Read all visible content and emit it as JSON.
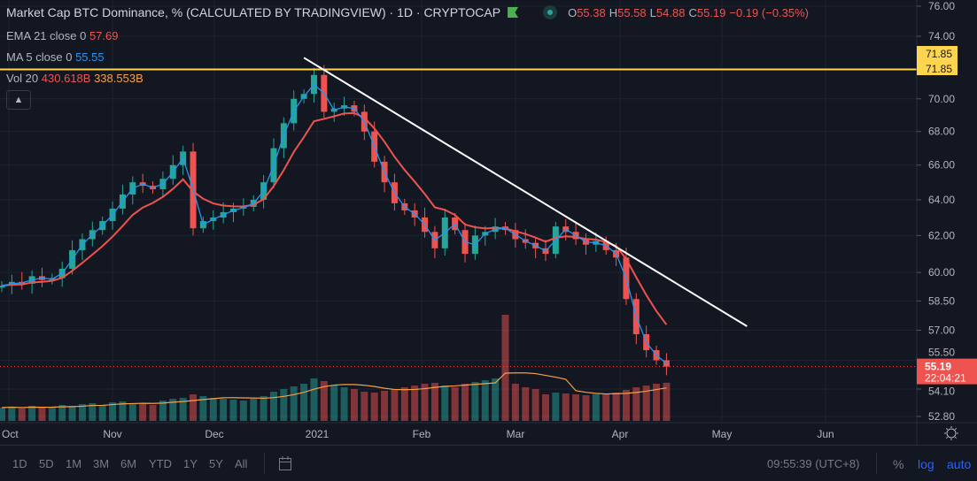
{
  "header": {
    "title": "Market Cap BTC Dominance, % (CALCULATED BY TRADINGVIEW) · 1D · CRYPTOCAP",
    "open_label": "O",
    "open": "55.38",
    "high_label": "H",
    "high": "55.58",
    "low_label": "L",
    "low": "54.88",
    "close_label": "C",
    "close": "55.19",
    "change": "−0.19 (−0.35%)"
  },
  "indicators": {
    "ema": {
      "label": "EMA 21 close 0",
      "value": "57.69",
      "color": "#ef5350"
    },
    "ma": {
      "label": "MA 5 close 0",
      "value": "55.55",
      "color": "#2196f3"
    },
    "vol": {
      "label": "Vol 20",
      "value": "430.618B",
      "ma_value": "338.553B"
    }
  },
  "price_axis": {
    "ticks": [
      "76.00",
      "74.00",
      "70.00",
      "68.00",
      "66.00",
      "64.00",
      "62.00",
      "60.00",
      "58.50",
      "57.00",
      "55.50",
      "54.10",
      "52.80"
    ],
    "hline_label": "71.85",
    "hline_label_2": "71.85",
    "last_price": "55.19",
    "countdown": "22:04:21"
  },
  "toolbar": {
    "ranges": [
      "1D",
      "5D",
      "1M",
      "3M",
      "6M",
      "YTD",
      "1Y",
      "5Y",
      "All"
    ],
    "clock": "09:55:39 (UTC+8)",
    "percent": "%",
    "log": "log",
    "auto": "auto"
  },
  "chart_data": {
    "type": "candlestick",
    "title": "Market Cap BTC Dominance, %",
    "scale": "log",
    "ylim": [
      52.8,
      76.0
    ],
    "x_tick_labels": [
      "Oct",
      "Nov",
      "Dec",
      "2021",
      "Feb",
      "Mar",
      "Apr",
      "May",
      "Jun"
    ],
    "sampling": "approx. every 3 days from late Sep 2020 to mid Apr 2021",
    "closes": [
      59.3,
      59.5,
      59.4,
      59.8,
      59.6,
      59.7,
      60.2,
      61.2,
      61.8,
      62.3,
      62.8,
      63.5,
      64.3,
      65.0,
      64.8,
      64.6,
      65.2,
      66.0,
      66.8,
      62.4,
      62.8,
      63.0,
      63.3,
      63.5,
      63.6,
      64.0,
      65.0,
      67.0,
      68.5,
      70.0,
      70.3,
      71.5,
      69.2,
      69.4,
      69.6,
      69.2,
      68.0,
      66.2,
      65.0,
      63.8,
      63.4,
      63.0,
      62.2,
      61.3,
      63.0,
      62.3,
      61.0,
      62.0,
      62.2,
      62.5,
      62.3,
      61.8,
      61.6,
      61.3,
      61.0,
      62.5,
      62.2,
      61.8,
      61.5,
      61.7,
      61.2,
      60.8,
      58.6,
      56.8,
      56.0,
      55.5,
      55.19
    ],
    "volume_billions": [
      150,
      160,
      140,
      170,
      150,
      160,
      180,
      170,
      190,
      200,
      180,
      210,
      220,
      200,
      190,
      180,
      230,
      250,
      260,
      300,
      280,
      260,
      250,
      240,
      230,
      250,
      280,
      330,
      360,
      390,
      420,
      480,
      450,
      400,
      380,
      360,
      330,
      320,
      340,
      360,
      380,
      400,
      420,
      430,
      400,
      380,
      420,
      440,
      460,
      480,
      1200,
      420,
      380,
      360,
      300,
      320,
      310,
      300,
      290,
      300,
      310,
      320,
      350,
      380,
      400,
      420,
      431
    ],
    "horizontal_line": 71.85,
    "trendline": {
      "from": {
        "index": 30,
        "price": 72.6
      },
      "to": {
        "index": 74,
        "price": 57.2
      }
    },
    "series_colors": {
      "up": "#26a69a",
      "down": "#ef5350",
      "ema": "#ef5350",
      "ma": "#2196f3",
      "vol_ma": "#f7a046",
      "hline": "#ffd54f",
      "trendline": "#ffffff"
    }
  }
}
